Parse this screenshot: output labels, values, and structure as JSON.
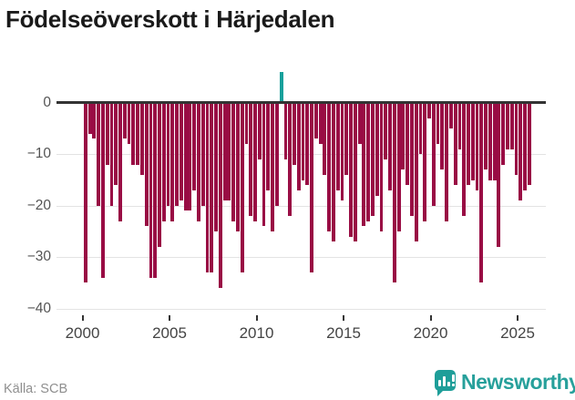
{
  "title": "Födelseöverskott i Härjedalen",
  "footer": {
    "source": "Källa: SCB",
    "brand": "Newsworthy"
  },
  "colors": {
    "negative_bar": "#990c44",
    "positive_bar": "#18a09b",
    "zero_line": "#333333",
    "gridline": "#e3e3e3",
    "brand_teal": "#1e9e99"
  },
  "chart_data": {
    "type": "bar",
    "title": "Födelseöverskott i Härjedalen",
    "x_unit": "quarter",
    "x_range": [
      "2000Q1",
      "2025Q3"
    ],
    "xticks": [
      2000,
      2005,
      2010,
      2015,
      2020,
      2025
    ],
    "yticks": [
      0,
      -10,
      -20,
      -30,
      -40
    ],
    "ylim": [
      -40,
      8
    ],
    "grid": true,
    "legend": "none",
    "values_by_year": {
      "2000": [
        -35,
        -6,
        -7,
        -20
      ],
      "2001": [
        -34,
        -12,
        -20,
        -16
      ],
      "2002": [
        -23,
        -7,
        -8,
        -12
      ],
      "2003": [
        -12,
        -14,
        -24,
        -34
      ],
      "2004": [
        -34,
        -28,
        -23,
        -20
      ],
      "2005": [
        -23,
        -20,
        -19,
        -21
      ],
      "2006": [
        -21,
        -17,
        -23,
        -20
      ],
      "2007": [
        -33,
        -33,
        -25,
        -36
      ],
      "2008": [
        -19,
        -19,
        -23,
        -25
      ],
      "2009": [
        -33,
        -8,
        -22,
        -23
      ],
      "2010": [
        -11,
        -24,
        -17,
        -25
      ],
      "2011": [
        -20,
        6,
        -11,
        -22
      ],
      "2012": [
        -12,
        -17,
        -15,
        -16
      ],
      "2013": [
        -33,
        -7,
        -8,
        -14
      ],
      "2014": [
        -25,
        -27,
        -17,
        -19
      ],
      "2015": [
        -14,
        -26,
        -27,
        -8
      ],
      "2016": [
        -24,
        -23,
        -22,
        -18
      ],
      "2017": [
        -25,
        -11,
        -17,
        -35
      ],
      "2018": [
        -25,
        -13,
        -16,
        -22
      ],
      "2019": [
        -27,
        -10,
        -23,
        -3
      ],
      "2020": [
        -20,
        -8,
        -13,
        -23
      ],
      "2021": [
        -5,
        -16,
        -9,
        -22
      ],
      "2022": [
        -16,
        -15,
        -17,
        -35
      ],
      "2023": [
        -13,
        -15,
        -15,
        -28
      ],
      "2024": [
        -12,
        -9,
        -9,
        -14
      ],
      "2025": [
        -19,
        -17,
        -16
      ]
    }
  }
}
